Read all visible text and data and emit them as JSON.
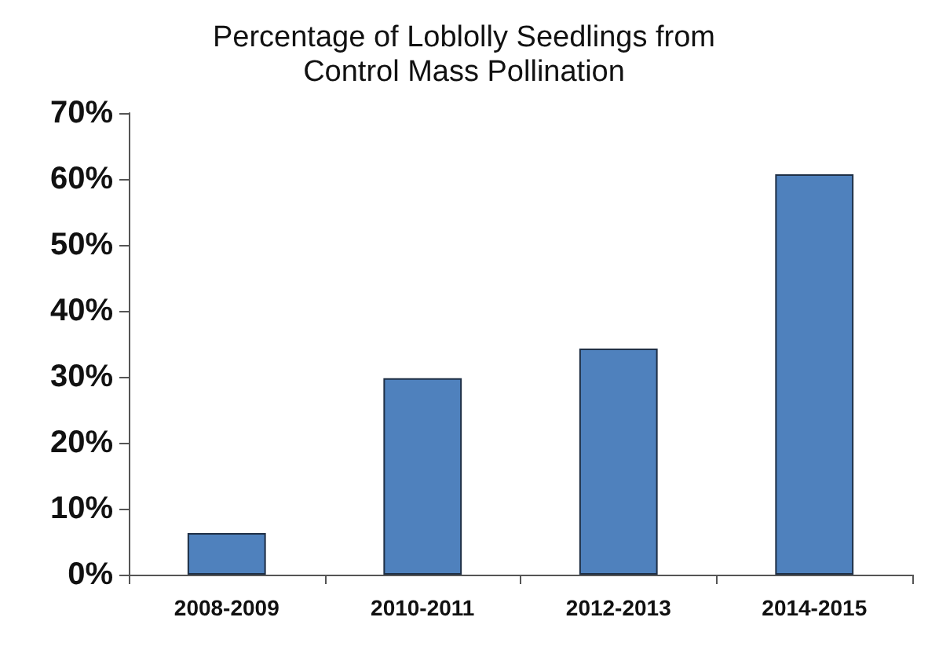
{
  "chart_data": {
    "type": "bar",
    "title": "Percentage of Loblolly Seedlings from\nControl Mass Pollination",
    "categories": [
      "2008-2009",
      "2010-2011",
      "2012-2013",
      "2014-2015"
    ],
    "values": [
      6.3,
      29.8,
      34.3,
      60.7
    ],
    "color": "#4f81bd",
    "ylim": [
      0,
      70
    ],
    "yticks": [
      {
        "value": 0,
        "label": "0%"
      },
      {
        "value": 10,
        "label": "10%"
      },
      {
        "value": 20,
        "label": "20%"
      },
      {
        "value": 30,
        "label": "30%"
      },
      {
        "value": 40,
        "label": "40%"
      },
      {
        "value": 50,
        "label": "50%"
      },
      {
        "value": 60,
        "label": "60%"
      },
      {
        "value": 70,
        "label": "70%"
      }
    ],
    "grid": false
  }
}
